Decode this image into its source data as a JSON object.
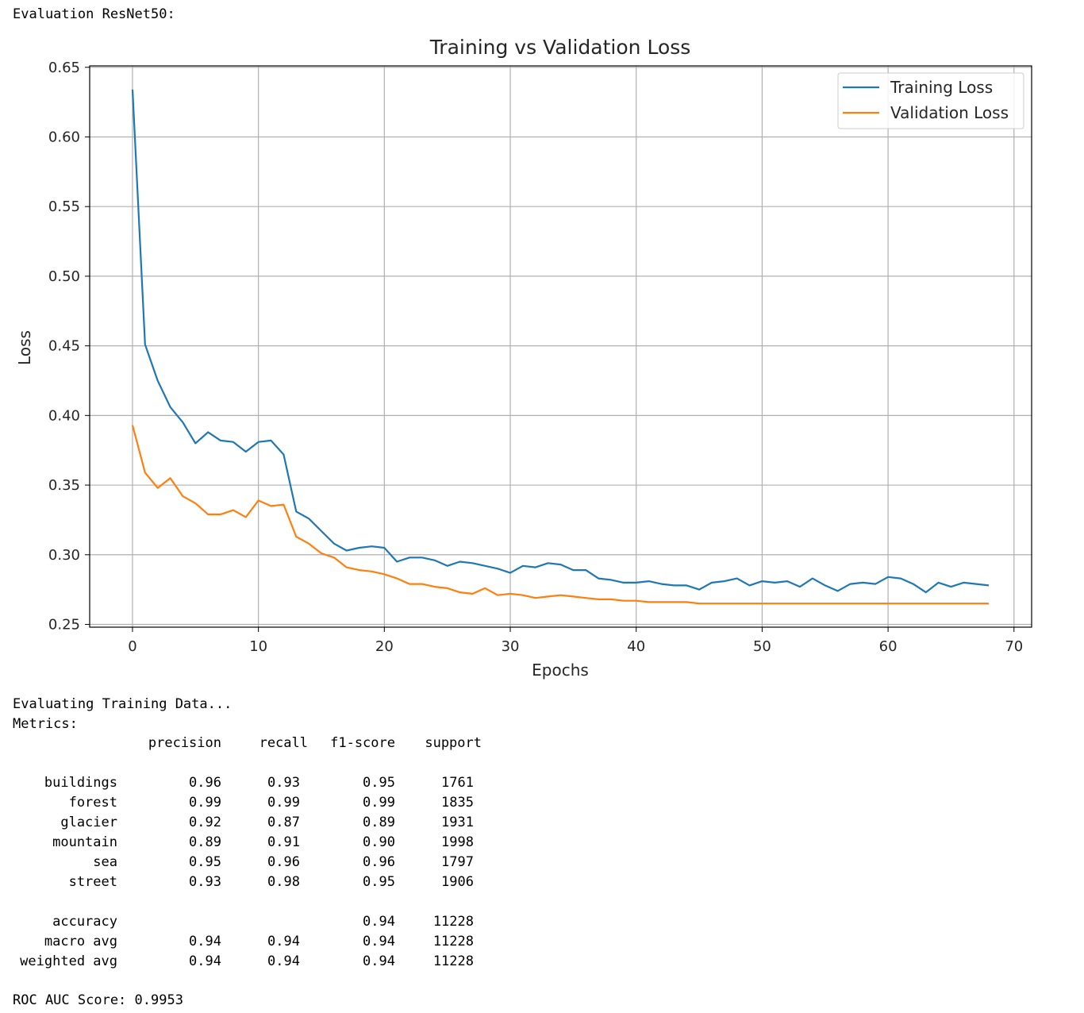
{
  "header": {
    "text": "Evaluation ResNet50:"
  },
  "chart_data": {
    "type": "line",
    "title": "Training vs Validation Loss",
    "xlabel": "Epochs",
    "ylabel": "Loss",
    "xlim": [
      -3.4,
      71.4
    ],
    "ylim": [
      0.248,
      0.651
    ],
    "xticks": [
      0,
      10,
      20,
      30,
      40,
      50,
      60,
      70
    ],
    "yticks": [
      0.25,
      0.3,
      0.35,
      0.4,
      0.45,
      0.5,
      0.55,
      0.6,
      0.65
    ],
    "ytick_labels": [
      "0.25",
      "0.30",
      "0.35",
      "0.40",
      "0.45",
      "0.50",
      "0.55",
      "0.60",
      "0.65"
    ],
    "grid": true,
    "legend_position": "top-right",
    "x": [
      0,
      1,
      2,
      3,
      4,
      5,
      6,
      7,
      8,
      9,
      10,
      11,
      12,
      13,
      14,
      15,
      16,
      17,
      18,
      19,
      20,
      21,
      22,
      23,
      24,
      25,
      26,
      27,
      28,
      29,
      30,
      31,
      32,
      33,
      34,
      35,
      36,
      37,
      38,
      39,
      40,
      41,
      42,
      43,
      44,
      45,
      46,
      47,
      48,
      49,
      50,
      51,
      52,
      53,
      54,
      55,
      56,
      57,
      58,
      59,
      60,
      61,
      62,
      63,
      64,
      65,
      66,
      67,
      68
    ],
    "series": [
      {
        "name": "Training Loss",
        "color": "#1f77b4",
        "values": [
          0.634,
          0.451,
          0.425,
          0.406,
          0.395,
          0.38,
          0.388,
          0.382,
          0.381,
          0.374,
          0.381,
          0.382,
          0.372,
          0.331,
          0.326,
          0.317,
          0.308,
          0.303,
          0.305,
          0.306,
          0.305,
          0.295,
          0.298,
          0.298,
          0.296,
          0.292,
          0.295,
          0.294,
          0.292,
          0.29,
          0.287,
          0.292,
          0.291,
          0.294,
          0.293,
          0.289,
          0.289,
          0.283,
          0.282,
          0.28,
          0.28,
          0.281,
          0.279,
          0.278,
          0.278,
          0.275,
          0.28,
          0.281,
          0.283,
          0.278,
          0.281,
          0.28,
          0.281,
          0.277,
          0.283,
          0.278,
          0.274,
          0.279,
          0.28,
          0.279,
          0.284,
          0.283,
          0.279,
          0.273,
          0.28,
          0.277,
          0.28,
          0.279,
          0.278
        ]
      },
      {
        "name": "Validation Loss",
        "color": "#ff7f0e",
        "values": [
          0.393,
          0.359,
          0.348,
          0.355,
          0.342,
          0.337,
          0.329,
          0.329,
          0.332,
          0.327,
          0.339,
          0.335,
          0.336,
          0.313,
          0.308,
          0.301,
          0.298,
          0.291,
          0.289,
          0.288,
          0.286,
          0.283,
          0.279,
          0.279,
          0.277,
          0.276,
          0.273,
          0.272,
          0.276,
          0.271,
          0.272,
          0.271,
          0.269,
          0.27,
          0.271,
          0.27,
          0.269,
          0.268,
          0.268,
          0.267,
          0.267,
          0.266,
          0.266,
          0.266,
          0.266,
          0.265,
          0.265,
          0.265,
          0.265,
          0.265,
          0.265,
          0.265,
          0.265,
          0.265,
          0.265,
          0.265,
          0.265,
          0.265,
          0.265,
          0.265,
          0.265,
          0.265,
          0.265,
          0.265,
          0.265,
          0.265,
          0.265,
          0.265,
          0.265
        ]
      }
    ]
  },
  "report": {
    "intro": [
      "Evaluating Training Data...",
      "Metrics:"
    ],
    "columns": [
      "precision",
      "recall",
      "f1-score",
      "support"
    ],
    "rows": [
      {
        "label": "buildings",
        "cells": [
          "0.96",
          "0.93",
          "0.95",
          "1761"
        ]
      },
      {
        "label": "forest",
        "cells": [
          "0.99",
          "0.99",
          "0.99",
          "1835"
        ]
      },
      {
        "label": "glacier",
        "cells": [
          "0.92",
          "0.87",
          "0.89",
          "1931"
        ]
      },
      {
        "label": "mountain",
        "cells": [
          "0.89",
          "0.91",
          "0.90",
          "1998"
        ]
      },
      {
        "label": "sea",
        "cells": [
          "0.95",
          "0.96",
          "0.96",
          "1797"
        ]
      },
      {
        "label": "street",
        "cells": [
          "0.93",
          "0.98",
          "0.95",
          "1906"
        ]
      }
    ],
    "summary": [
      {
        "label": "accuracy",
        "cells": [
          "",
          "",
          "0.94",
          "11228"
        ]
      },
      {
        "label": "macro avg",
        "cells": [
          "0.94",
          "0.94",
          "0.94",
          "11228"
        ]
      },
      {
        "label": "weighted avg",
        "cells": [
          "0.94",
          "0.94",
          "0.94",
          "11228"
        ]
      }
    ],
    "footer": "ROC AUC Score: 0.9953"
  }
}
